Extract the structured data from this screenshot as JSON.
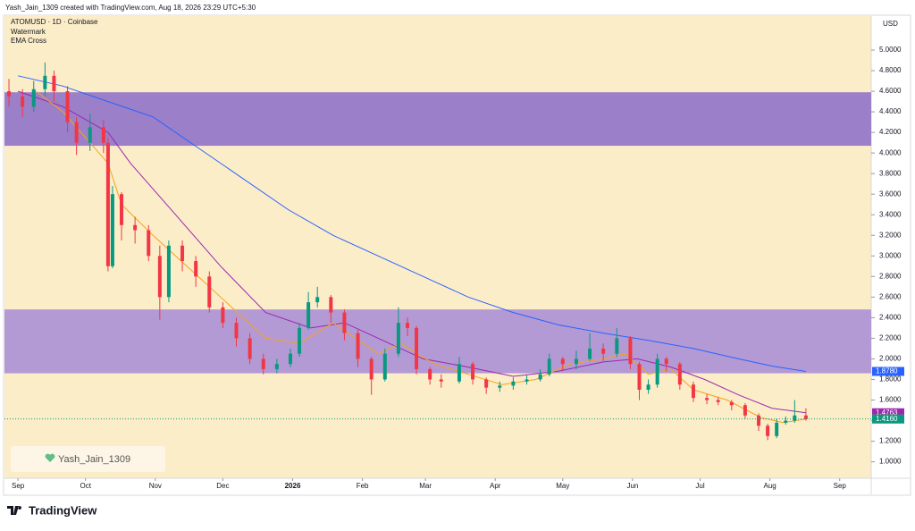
{
  "header": {
    "attribution": "Yash_Jain_1309 created with TradingView.com, Aug 18, 2026 23:29 UTC+5:30",
    "symbol": "ATOMUSD · 1D · Coinbase",
    "indicators": [
      "Watermark",
      "EMA Cross"
    ]
  },
  "watermark": "Yash_Jain_1309",
  "logo": "TradingView",
  "chart_data": {
    "type": "candlestick",
    "currency": "USD",
    "up_color": "#089981",
    "down_color": "#f23645",
    "x": [
      -4,
      2,
      7,
      12,
      16,
      22,
      26,
      32,
      38,
      40,
      42,
      46,
      52,
      58,
      63,
      67,
      73,
      79,
      85,
      91,
      97,
      103,
      109,
      115,
      121,
      125,
      129,
      133,
      139,
      145,
      151,
      157,
      163,
      169,
      173,
      177,
      183,
      188,
      196,
      202,
      208,
      214,
      220,
      226,
      232,
      236,
      242,
      248,
      254,
      260,
      266,
      272,
      276,
      280,
      284,
      288,
      294,
      300,
      306,
      311,
      317,
      323,
      329,
      333,
      337,
      341,
      345,
      350
    ],
    "open": [
      4.6,
      4.55,
      4.45,
      4.62,
      4.75,
      4.6,
      4.3,
      4.1,
      4.25,
      4.1,
      2.9,
      3.6,
      3.3,
      3.25,
      3.0,
      2.6,
      3.1,
      2.95,
      2.8,
      2.5,
      2.35,
      2.2,
      2.0,
      1.9,
      1.95,
      2.05,
      2.3,
      2.55,
      2.6,
      2.45,
      2.25,
      2.0,
      1.8,
      2.05,
      2.35,
      2.3,
      1.9,
      1.8,
      1.78,
      1.95,
      1.8,
      1.72,
      1.74,
      1.78,
      1.8,
      1.85,
      2.0,
      1.95,
      2.0,
      2.1,
      2.05,
      2.2,
      1.95,
      1.7,
      1.75,
      2.0,
      1.95,
      1.75,
      1.62,
      1.6,
      1.58,
      1.55,
      1.45,
      1.35,
      1.25,
      1.38,
      1.4,
      1.45
    ],
    "high": [
      4.72,
      4.62,
      4.7,
      4.88,
      4.8,
      4.65,
      4.35,
      4.38,
      4.32,
      4.15,
      3.68,
      3.62,
      3.38,
      3.3,
      3.1,
      3.15,
      3.15,
      3.0,
      2.85,
      2.55,
      2.4,
      2.25,
      2.05,
      2.0,
      2.1,
      2.35,
      2.65,
      2.7,
      2.62,
      2.48,
      2.28,
      2.02,
      2.1,
      2.5,
      2.4,
      2.32,
      1.92,
      1.85,
      2.02,
      1.97,
      1.82,
      1.78,
      1.82,
      1.84,
      1.9,
      2.05,
      2.02,
      2.08,
      2.25,
      2.15,
      2.3,
      2.22,
      1.97,
      1.8,
      2.05,
      2.02,
      1.97,
      1.78,
      1.66,
      1.63,
      1.6,
      1.57,
      1.47,
      1.37,
      1.42,
      1.44,
      1.6,
      1.52
    ],
    "low": [
      4.45,
      4.35,
      4.4,
      4.55,
      4.5,
      4.2,
      3.98,
      4.02,
      4.0,
      2.85,
      2.88,
      3.15,
      3.12,
      2.95,
      2.38,
      2.55,
      2.85,
      2.7,
      2.45,
      2.3,
      2.12,
      1.95,
      1.85,
      1.86,
      1.92,
      2.02,
      2.28,
      2.5,
      2.35,
      2.18,
      1.92,
      1.65,
      1.78,
      2.02,
      2.22,
      1.85,
      1.75,
      1.72,
      1.76,
      1.75,
      1.66,
      1.68,
      1.7,
      1.75,
      1.78,
      1.83,
      1.88,
      1.9,
      1.98,
      1.98,
      2.02,
      1.9,
      1.6,
      1.66,
      1.72,
      1.88,
      1.7,
      1.58,
      1.56,
      1.55,
      1.5,
      1.42,
      1.3,
      1.21,
      1.23,
      1.36,
      1.38,
      1.4
    ],
    "close": [
      4.55,
      4.45,
      4.62,
      4.75,
      4.6,
      4.3,
      4.1,
      4.25,
      4.1,
      2.9,
      3.6,
      3.3,
      3.25,
      3.0,
      2.6,
      3.1,
      2.95,
      2.8,
      2.5,
      2.35,
      2.2,
      2.0,
      1.9,
      1.95,
      2.05,
      2.3,
      2.55,
      2.6,
      2.45,
      2.25,
      2.0,
      1.8,
      2.05,
      2.35,
      2.3,
      1.9,
      1.8,
      1.78,
      1.95,
      1.8,
      1.72,
      1.74,
      1.78,
      1.8,
      1.85,
      2.0,
      1.95,
      2.0,
      2.1,
      2.05,
      2.2,
      1.95,
      1.7,
      1.75,
      2.0,
      1.95,
      1.75,
      1.62,
      1.6,
      1.58,
      1.55,
      1.45,
      1.35,
      1.25,
      1.38,
      1.4,
      1.45,
      1.416
    ],
    "close_label": "1.4160",
    "lines": [
      {
        "color": "#2962ff",
        "x": [
          0,
          20,
          40,
          60,
          80,
          100,
          120,
          140,
          160,
          180,
          200,
          220,
          240,
          260,
          280,
          300,
          320,
          335,
          350
        ],
        "values": [
          4.75,
          4.65,
          4.5,
          4.35,
          4.05,
          3.75,
          3.45,
          3.2,
          3.0,
          2.8,
          2.6,
          2.45,
          2.33,
          2.25,
          2.18,
          2.1,
          2.0,
          1.93,
          1.878
        ],
        "last_label": "1.8780"
      },
      {
        "color": "#9c27b0",
        "x": [
          0,
          20,
          40,
          50,
          70,
          90,
          110,
          130,
          145,
          165,
          180,
          200,
          220,
          240,
          260,
          275,
          290,
          305,
          320,
          335,
          350
        ],
        "values": [
          4.6,
          4.45,
          4.2,
          3.9,
          3.4,
          2.9,
          2.45,
          2.3,
          2.35,
          2.15,
          2.0,
          1.92,
          1.83,
          1.88,
          1.97,
          2.0,
          1.92,
          1.8,
          1.65,
          1.52,
          1.4763
        ],
        "last_label": "1.4763"
      },
      {
        "color": "#f7a21b",
        "x": [
          8,
          20,
          40,
          46,
          60,
          80,
          100,
          110,
          125,
          140,
          160,
          170,
          185,
          200,
          215,
          230,
          245,
          260,
          270,
          280,
          290,
          300,
          315,
          330,
          340,
          350
        ],
        "values": [
          4.6,
          4.4,
          3.9,
          3.5,
          3.2,
          2.8,
          2.4,
          2.2,
          2.15,
          2.35,
          2.05,
          2.15,
          1.95,
          1.85,
          1.75,
          1.8,
          1.95,
          2.0,
          2.05,
          1.85,
          1.9,
          1.7,
          1.6,
          1.43,
          1.38,
          1.4155
        ],
        "last_label": "1.4155"
      }
    ],
    "zones": [
      {
        "from": 4.07,
        "to": 4.59,
        "color": "#9b7fc9"
      },
      {
        "from": 1.86,
        "to": 2.48,
        "color": "#b39ad4"
      }
    ],
    "xlim": [
      -6,
      379
    ],
    "xticks": [
      {
        "value": 0,
        "label": "Sep"
      },
      {
        "value": 30,
        "label": "Oct"
      },
      {
        "value": 61,
        "label": "Nov"
      },
      {
        "value": 91,
        "label": "Dec"
      },
      {
        "value": 122,
        "label": "2026"
      },
      {
        "value": 153,
        "label": "Feb"
      },
      {
        "value": 181,
        "label": "Mar"
      },
      {
        "value": 212,
        "label": "Apr"
      },
      {
        "value": 242,
        "label": "May"
      },
      {
        "value": 273,
        "label": "Jun"
      },
      {
        "value": 303,
        "label": "Jul"
      },
      {
        "value": 334,
        "label": "Aug"
      },
      {
        "value": 365,
        "label": "Sep"
      }
    ],
    "ylim": [
      0.84,
      5.33
    ],
    "yticks": [
      {
        "value": 1,
        "label": "1.0000"
      },
      {
        "value": 1.2,
        "label": "1.2000"
      },
      {
        "value": 1.4,
        "label": "1.4000"
      },
      {
        "value": 1.6,
        "label": "1.6000"
      },
      {
        "value": 1.8,
        "label": "1.8000"
      },
      {
        "value": 2,
        "label": "2.0000"
      },
      {
        "value": 2.2,
        "label": "2.2000"
      },
      {
        "value": 2.4,
        "label": "2.4000"
      },
      {
        "value": 2.6,
        "label": "2.6000"
      },
      {
        "value": 2.8,
        "label": "2.8000"
      },
      {
        "value": 3,
        "label": "3.0000"
      },
      {
        "value": 3.2,
        "label": "3.2000"
      },
      {
        "value": 3.4,
        "label": "3.4000"
      },
      {
        "value": 3.6,
        "label": "3.6000"
      },
      {
        "value": 3.8,
        "label": "3.8000"
      },
      {
        "value": 4,
        "label": "4.0000"
      },
      {
        "value": 4.2,
        "label": "4.2000"
      },
      {
        "value": 4.4,
        "label": "4.4000"
      },
      {
        "value": 4.6,
        "label": "4.6000"
      },
      {
        "value": 4.8,
        "label": "4.8000"
      },
      {
        "value": 5,
        "label": "5.0000"
      }
    ]
  }
}
